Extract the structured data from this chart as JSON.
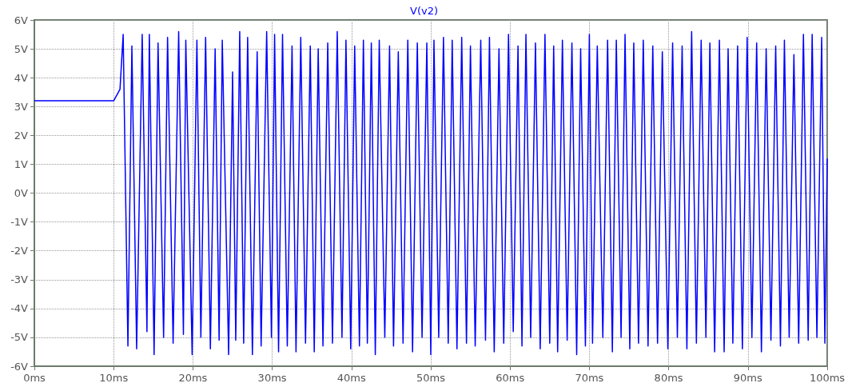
{
  "chart_data": {
    "type": "line",
    "title": "V(v2)",
    "grid": true,
    "marker": "none",
    "line_style": "solid",
    "xlim": [
      0,
      100
    ],
    "ylim": [
      -6,
      6
    ],
    "xticks": [
      {
        "value": 0,
        "label": "0ms"
      },
      {
        "value": 10,
        "label": "10ms"
      },
      {
        "value": 20,
        "label": "20ms"
      },
      {
        "value": 30,
        "label": "30ms"
      },
      {
        "value": 40,
        "label": "40ms"
      },
      {
        "value": 50,
        "label": "50ms"
      },
      {
        "value": 60,
        "label": "60ms"
      },
      {
        "value": 70,
        "label": "70ms"
      },
      {
        "value": 80,
        "label": "80ms"
      },
      {
        "value": 90,
        "label": "90ms"
      },
      {
        "value": 100,
        "label": "100ms"
      }
    ],
    "yticks": [
      {
        "value": -6,
        "label": "-6V"
      },
      {
        "value": -5,
        "label": "-5V"
      },
      {
        "value": -4,
        "label": "-4V"
      },
      {
        "value": -3,
        "label": "-3V"
      },
      {
        "value": -2,
        "label": "-2V"
      },
      {
        "value": -1,
        "label": "-1V"
      },
      {
        "value": 0,
        "label": "0V"
      },
      {
        "value": 1,
        "label": "1V"
      },
      {
        "value": 2,
        "label": "2V"
      },
      {
        "value": 3,
        "label": "3V"
      },
      {
        "value": 4,
        "label": "4V"
      },
      {
        "value": 5,
        "label": "5V"
      },
      {
        "value": 6,
        "label": "6V"
      }
    ],
    "x": [
      0,
      10,
      10.8,
      11.2,
      11.8,
      12.3,
      12.9,
      13.6,
      14.2,
      14.5,
      15.1,
      15.6,
      16.3,
      16.8,
      17.5,
      18.2,
      18.8,
      19.1,
      19.9,
      20.5,
      21.0,
      21.6,
      22.2,
      22.8,
      23.3,
      23.7,
      24.5,
      25.0,
      25.4,
      25.9,
      26.4,
      26.9,
      27.5,
      28.1,
      28.6,
      29.3,
      29.9,
      30.3,
      30.8,
      31.3,
      31.9,
      32.5,
      33.0,
      33.6,
      34.2,
      34.8,
      35.3,
      35.8,
      36.4,
      37.0,
      37.6,
      38.2,
      38.8,
      39.3,
      39.9,
      40.4,
      41.0,
      41.5,
      42.0,
      42.5,
      43.0,
      43.5,
      44.2,
      44.8,
      45.3,
      45.9,
      46.5,
      47.1,
      47.7,
      48.3,
      48.9,
      49.5,
      50.0,
      50.4,
      51.0,
      51.6,
      52.2,
      52.7,
      53.3,
      53.9,
      54.5,
      55.0,
      55.6,
      56.3,
      56.9,
      57.4,
      58.0,
      58.6,
      59.2,
      59.8,
      60.4,
      61.0,
      61.5,
      62.0,
      62.6,
      63.2,
      63.8,
      64.4,
      65.0,
      65.5,
      66.0,
      66.6,
      67.2,
      67.8,
      68.4,
      68.9,
      69.5,
      70.0,
      70.4,
      71.0,
      71.7,
      72.3,
      72.9,
      73.4,
      74.0,
      74.5,
      75.1,
      75.6,
      76.2,
      76.8,
      77.4,
      78.0,
      78.6,
      79.2,
      79.9,
      80.5,
      81.1,
      81.7,
      82.3,
      82.9,
      83.5,
      84.1,
      84.7,
      85.2,
      85.8,
      86.4,
      87.0,
      87.5,
      88.1,
      88.7,
      89.3,
      89.9,
      90.5,
      91.1,
      91.7,
      92.3,
      92.9,
      93.5,
      94.1,
      94.6,
      95.2,
      95.8,
      96.4,
      97.0,
      97.6,
      98.1,
      98.7,
      99.3,
      99.7,
      100
    ],
    "series": [
      {
        "color": "#0000ff",
        "values": [
          3.2,
          3.2,
          3.6,
          5.5,
          -5.3,
          5.1,
          -5.4,
          5.5,
          -4.8,
          5.5,
          -5.6,
          5.2,
          -5.0,
          5.4,
          -5.2,
          5.6,
          -4.9,
          5.3,
          -5.6,
          5.3,
          -5.0,
          5.4,
          -5.4,
          5.0,
          -5.1,
          5.3,
          -5.6,
          4.2,
          -5.1,
          5.6,
          -5.2,
          5.4,
          -5.6,
          4.9,
          -5.3,
          5.6,
          -5.0,
          5.5,
          -5.5,
          5.5,
          -5.3,
          5.1,
          -5.5,
          5.4,
          -5.2,
          5.1,
          -5.5,
          5.0,
          -5.3,
          5.2,
          -5.2,
          5.6,
          -5.0,
          5.3,
          -5.4,
          5.1,
          -5.3,
          5.3,
          -5.2,
          5.2,
          -5.6,
          5.3,
          -5.0,
          5.1,
          -5.3,
          4.9,
          -5.2,
          5.3,
          -5.5,
          5.2,
          -5.0,
          5.2,
          -5.6,
          5.3,
          -5.0,
          5.4,
          -5.2,
          5.3,
          -5.4,
          5.4,
          -5.2,
          5.1,
          -5.3,
          5.3,
          -5.1,
          5.4,
          -5.5,
          5.0,
          -5.2,
          5.5,
          -4.8,
          5.1,
          -5.3,
          5.5,
          -5.0,
          5.2,
          -5.4,
          5.5,
          -5.2,
          5.1,
          -5.5,
          5.3,
          -5.1,
          5.2,
          -5.6,
          5.0,
          -5.3,
          5.5,
          -5.2,
          5.1,
          -5.0,
          5.3,
          -5.5,
          5.3,
          -5.0,
          5.5,
          -5.4,
          5.2,
          -5.2,
          5.3,
          -5.3,
          5.1,
          -5.2,
          4.9,
          -5.4,
          5.2,
          -5.0,
          5.1,
          -5.4,
          5.6,
          -5.2,
          5.3,
          -5.0,
          5.2,
          -5.5,
          5.3,
          -5.5,
          5.0,
          -5.2,
          5.1,
          -5.4,
          5.4,
          -5.0,
          5.2,
          -5.5,
          5.0,
          -5.1,
          5.1,
          -5.3,
          5.3,
          -5.0,
          4.8,
          -5.2,
          5.5,
          -5.1,
          5.5,
          -5.0,
          5.4,
          -5.2,
          1.2
        ]
      }
    ]
  }
}
